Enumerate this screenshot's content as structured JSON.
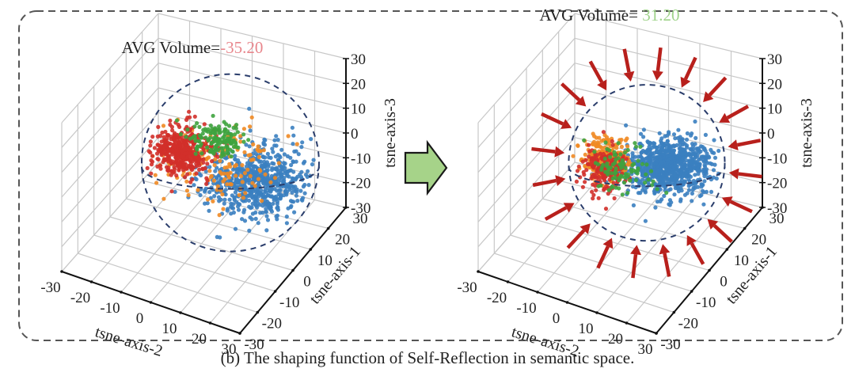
{
  "caption": "(b) The shaping function of Self-Reflection in semantic space.",
  "colors": {
    "blue": "#3b7fc0",
    "red": "#d1302a",
    "green": "#3ea33e",
    "orange": "#f08a24",
    "sphere": "#2a3d6b",
    "arrow_red": "#b8201c",
    "transition_arrow": "#a6d389",
    "value_before": "#e8868c",
    "value_after": "#9fd38a",
    "frame": "#555555",
    "grid": "#c8c8c8"
  },
  "transition_arrow": {
    "icon": "right-arrow-icon"
  },
  "chart_data": [
    {
      "type": "scatter",
      "subtype": "3d-scatter",
      "panel": "before",
      "title_label": "AVG Volume=",
      "title_value": "35.20",
      "xlabel": "tsne-axis-2",
      "ylabel": "tsne-axis-1",
      "zlabel": "tsne-axis-3",
      "x_ticks": [
        "-30",
        "-20",
        "-10",
        "0",
        "10",
        "20",
        "30"
      ],
      "y_ticks": [
        "-30",
        "-20",
        "-10",
        "0",
        "10",
        "20",
        "30"
      ],
      "z_ticks": [
        "30",
        "20",
        "10",
        "0",
        "-10",
        "-20",
        "-30"
      ],
      "xlim": [
        -30,
        30
      ],
      "ylim": [
        -30,
        30
      ],
      "zlim": [
        -30,
        30
      ],
      "grid": true,
      "bounding_sphere": {
        "style": "dashed",
        "radius_relative": 1.0
      },
      "inward_arrows": 0,
      "series": [
        {
          "name": "blue",
          "color": "#3b7fc0",
          "cluster": "right/lower, widespread",
          "approx_share": 0.5
        },
        {
          "name": "red",
          "color": "#d1302a",
          "cluster": "left/upper",
          "approx_share": 0.3
        },
        {
          "name": "green",
          "color": "#3ea33e",
          "cluster": "center-left, dense core",
          "approx_share": 0.1
        },
        {
          "name": "orange",
          "color": "#f08a24",
          "cluster": "scattered",
          "approx_share": 0.1
        }
      ]
    },
    {
      "type": "scatter",
      "subtype": "3d-scatter",
      "panel": "after",
      "title_label": "AVG Volume=",
      "title_value": "31.20",
      "xlabel": "tsne-axis-2",
      "ylabel": "tsne-axis-1",
      "zlabel": "tsne-axis-3",
      "x_ticks": [
        "-30",
        "-20",
        "-10",
        "0",
        "10",
        "20",
        "30"
      ],
      "y_ticks": [
        "-30",
        "-20",
        "-10",
        "0",
        "10",
        "20",
        "30"
      ],
      "z_ticks": [
        "30",
        "20",
        "10",
        "0",
        "-10",
        "-20",
        "-30"
      ],
      "xlim": [
        -30,
        30
      ],
      "ylim": [
        -30,
        30
      ],
      "zlim": [
        -30,
        30
      ],
      "grid": true,
      "bounding_sphere": {
        "style": "dashed",
        "radius_relative": 0.88
      },
      "inward_arrows": 20,
      "series": [
        {
          "name": "blue",
          "color": "#3b7fc0",
          "cluster": "center/right, dominant",
          "approx_share": 0.65
        },
        {
          "name": "red",
          "color": "#d1302a",
          "cluster": "left, reduced",
          "approx_share": 0.12
        },
        {
          "name": "green",
          "color": "#3ea33e",
          "cluster": "sparse",
          "approx_share": 0.06
        },
        {
          "name": "orange",
          "color": "#f08a24",
          "cluster": "left, mixed",
          "approx_share": 0.17
        }
      ]
    }
  ]
}
